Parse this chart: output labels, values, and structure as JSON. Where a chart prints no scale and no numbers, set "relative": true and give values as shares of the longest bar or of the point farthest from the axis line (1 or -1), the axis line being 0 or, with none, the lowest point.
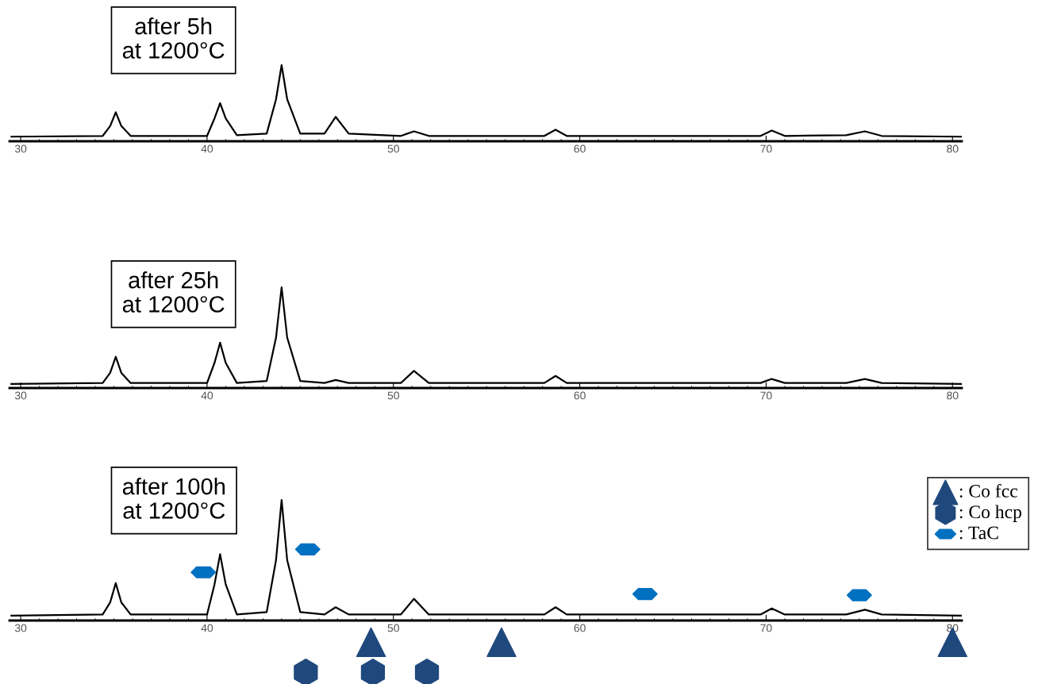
{
  "chart_data": [
    {
      "type": "line",
      "relative": true,
      "annotations": [
        "after 5h\nat 1200°C"
      ],
      "xlim": [
        29.4,
        80.5
      ],
      "xticks": [
        30,
        40,
        50,
        60,
        70,
        80
      ],
      "grid": false,
      "legend": false,
      "x": [
        29.5,
        34.4,
        34.8,
        35.1,
        35.4,
        35.9,
        40.0,
        40.4,
        40.7,
        41.0,
        41.6,
        43.2,
        43.7,
        44.0,
        44.3,
        45.0,
        46.3,
        46.9,
        47.6,
        50.4,
        51.1,
        51.9,
        58.1,
        58.7,
        59.3,
        69.7,
        70.3,
        71.0,
        74.3,
        75.3,
        76.2,
        80.5
      ],
      "series": [
        {
          "color": "#000000",
          "values": [
            0.06,
            0.07,
            0.2,
            0.38,
            0.2,
            0.07,
            0.07,
            0.3,
            0.5,
            0.3,
            0.08,
            0.1,
            0.55,
            1,
            0.55,
            0.1,
            0.1,
            0.32,
            0.1,
            0.07,
            0.13,
            0.07,
            0.07,
            0.15,
            0.07,
            0.07,
            0.14,
            0.07,
            0.08,
            0.13,
            0.07,
            0.06
          ]
        }
      ]
    },
    {
      "type": "line",
      "relative": true,
      "annotations": [
        "after 25h\nat 1200°C"
      ],
      "xlim": [
        29.4,
        80.5
      ],
      "xticks": [
        30,
        40,
        50,
        60,
        70,
        80
      ],
      "grid": false,
      "legend": false,
      "x": [
        29.5,
        34.4,
        34.8,
        35.1,
        35.4,
        35.9,
        40.0,
        40.4,
        40.7,
        41.0,
        41.6,
        43.2,
        43.7,
        44.0,
        44.3,
        45.0,
        46.3,
        46.9,
        47.6,
        50.4,
        51.1,
        51.9,
        58.1,
        58.7,
        59.3,
        69.7,
        70.3,
        71.0,
        74.3,
        75.3,
        76.2,
        80.5
      ],
      "series": [
        {
          "color": "#000000",
          "values": [
            0.04,
            0.05,
            0.15,
            0.31,
            0.15,
            0.05,
            0.05,
            0.25,
            0.45,
            0.25,
            0.05,
            0.07,
            0.5,
            1,
            0.5,
            0.07,
            0.05,
            0.08,
            0.05,
            0.05,
            0.17,
            0.05,
            0.05,
            0.12,
            0.05,
            0.05,
            0.09,
            0.05,
            0.05,
            0.09,
            0.05,
            0.04
          ]
        }
      ]
    },
    {
      "type": "line",
      "relative": true,
      "annotations": [
        "after 100h\nat 1200°C"
      ],
      "xlim": [
        29.4,
        80.5
      ],
      "xticks": [
        30,
        40,
        50,
        60,
        70,
        80
      ],
      "grid": false,
      "legend": "top right",
      "x": [
        29.5,
        34.4,
        34.8,
        35.1,
        35.4,
        35.9,
        40.0,
        40.4,
        40.7,
        41.0,
        41.6,
        43.2,
        43.7,
        44.0,
        44.3,
        45.0,
        46.3,
        46.9,
        47.6,
        50.4,
        51.1,
        51.9,
        58.1,
        58.7,
        59.3,
        69.7,
        70.3,
        71.0,
        74.3,
        75.3,
        76.2,
        80.5
      ],
      "series": [
        {
          "color": "#000000",
          "values": [
            0.04,
            0.05,
            0.15,
            0.31,
            0.15,
            0.05,
            0.05,
            0.3,
            0.55,
            0.3,
            0.05,
            0.07,
            0.5,
            1,
            0.5,
            0.07,
            0.05,
            0.11,
            0.05,
            0.05,
            0.18,
            0.05,
            0.05,
            0.11,
            0.05,
            0.05,
            0.1,
            0.05,
            0.05,
            0.09,
            0.05,
            0.04
          ]
        },
        {
          "type": "scatter",
          "name": ": Co fcc",
          "color": "#1f497d",
          "marker": "triangle",
          "x": [
            48.8,
            55.8,
            80.0
          ],
          "values": [
            -0.18,
            -0.18,
            -0.18
          ]
        },
        {
          "type": "scatter",
          "name": ": Co hcp",
          "color": "#1f497d",
          "x": [
            45.3,
            48.9,
            51.8
          ],
          "values": [
            -0.43,
            -0.43,
            -0.43
          ]
        },
        {
          "type": "scatter",
          "name": ": TaC",
          "color": "#0070c0",
          "x": [
            39.8,
            45.4,
            63.5,
            75.0
          ],
          "values": [
            0.4,
            0.59,
            0.22,
            0.21
          ]
        }
      ]
    }
  ]
}
